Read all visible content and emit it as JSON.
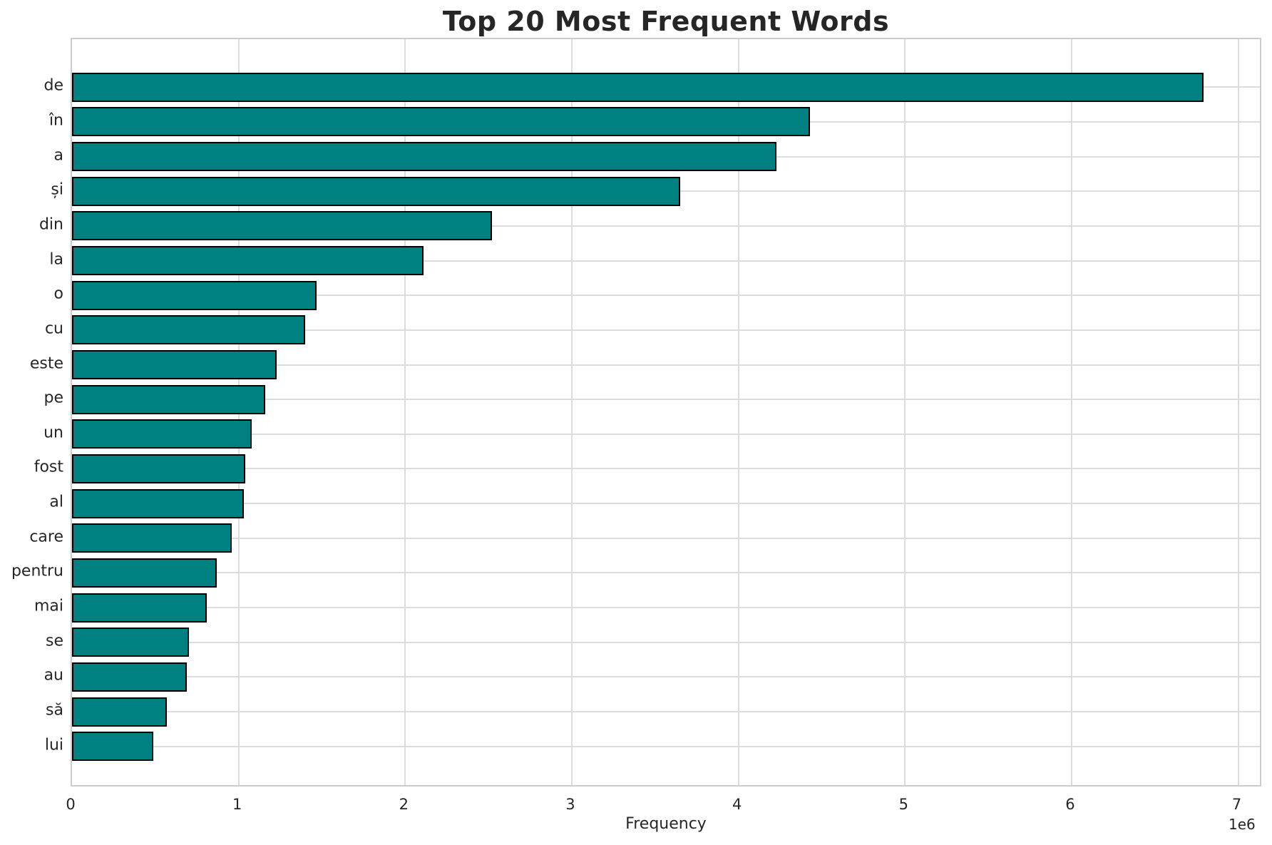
{
  "title": "Top 20 Most Frequent Words",
  "chart_data": {
    "type": "bar",
    "orientation": "horizontal",
    "title": "Top 20 Most Frequent Words",
    "xlabel": "Frequency",
    "ylabel": "",
    "categories": [
      "de",
      "în",
      "a",
      "și",
      "din",
      "la",
      "o",
      "cu",
      "este",
      "pe",
      "un",
      "fost",
      "al",
      "care",
      "pentru",
      "mai",
      "se",
      "au",
      "să",
      "lui"
    ],
    "values": [
      6790000,
      4430000,
      4230000,
      3650000,
      2520000,
      2110000,
      1470000,
      1400000,
      1230000,
      1160000,
      1080000,
      1040000,
      1030000,
      960000,
      870000,
      810000,
      700000,
      690000,
      570000,
      490000
    ],
    "x_ticks": [
      0,
      1,
      2,
      3,
      4,
      5,
      6,
      7
    ],
    "x_tick_unit": 1000000,
    "offset_label": "1e6",
    "xlim": [
      0,
      7130000
    ],
    "grid": true,
    "legend": false,
    "bar_color": "#008080",
    "bar_edge_color": "#000000",
    "grid_color": "#dcdcdc",
    "spine_color": "#cccccc",
    "text_color": "#262626"
  }
}
